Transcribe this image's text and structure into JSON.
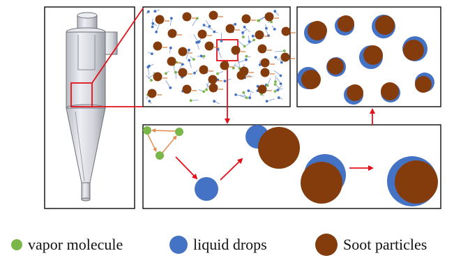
{
  "colors": {
    "vapor": "#7ab648",
    "liquid": "#4472c4",
    "soot": "#843c0c",
    "highlight": "#e3101a",
    "panel_border": "#1a1a1a",
    "cyclone_fill": "#dcdde2",
    "cyclone_stroke": "#6e7078",
    "vapor_link": "#e48a4c",
    "arrow_tail": "#d47a3a"
  },
  "legend": {
    "vapor_label": "vapor molecule",
    "liquid_label": "liquid drops",
    "soot_label": "Soot particles"
  },
  "icons": {
    "vapor": "green-circle",
    "liquid": "blue-circle",
    "soot": "brown-circle"
  }
}
